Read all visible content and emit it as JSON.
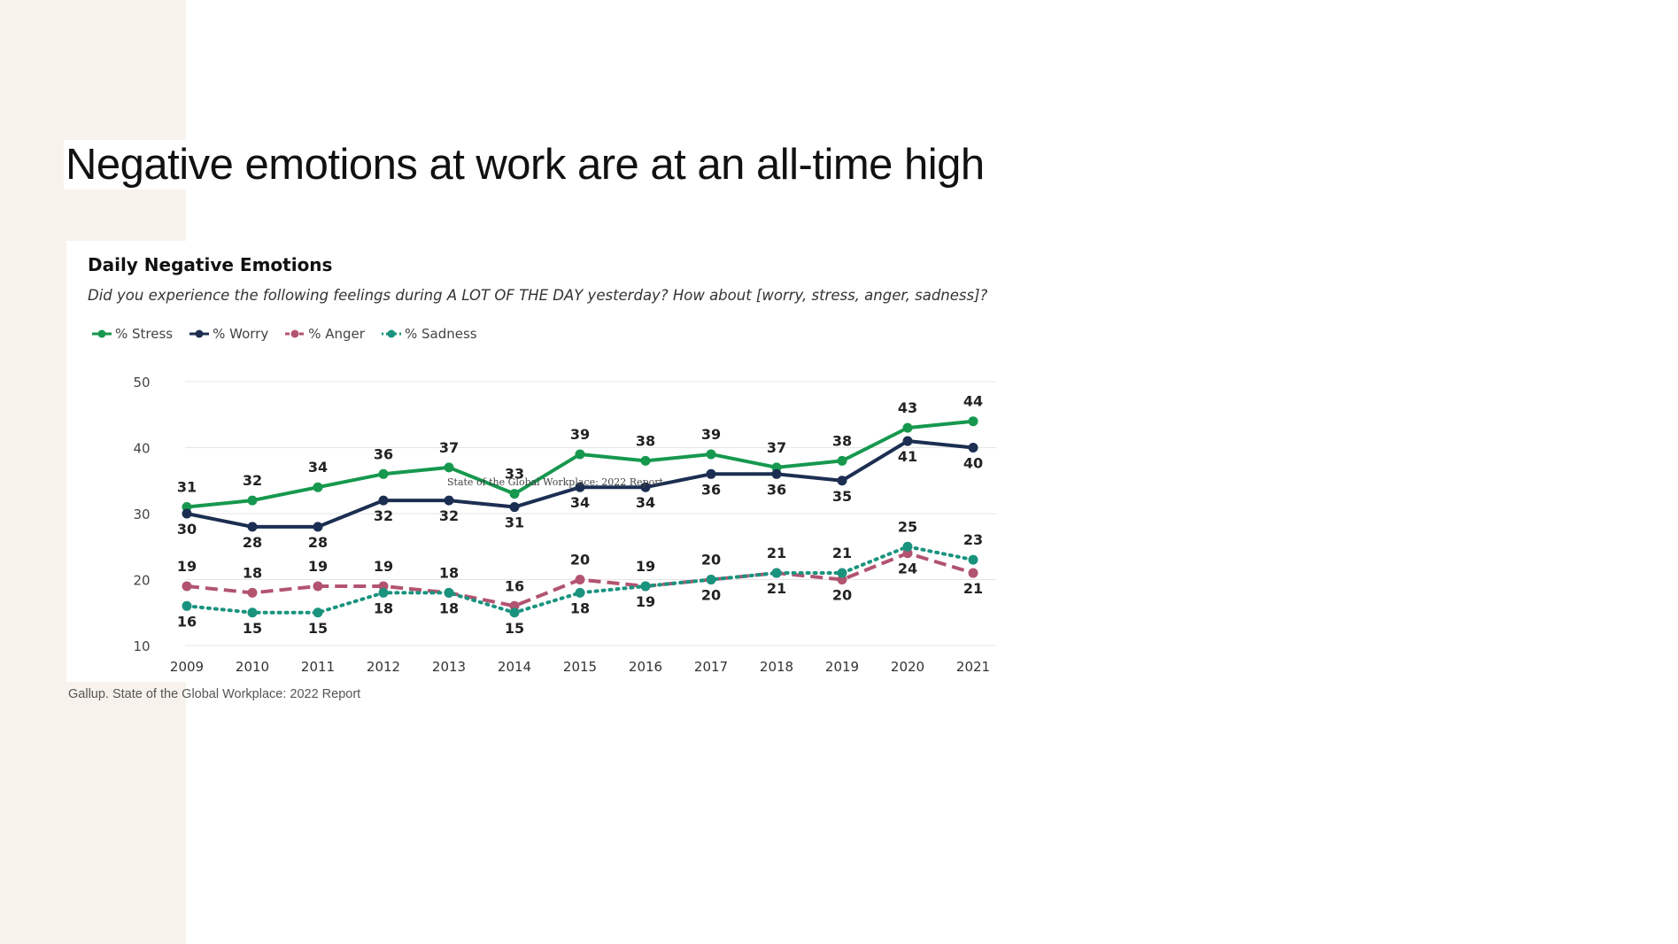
{
  "slide": {
    "title": "Negative emotions at work are at an all-time high",
    "source_note": "Gallup. State of the Global Workplace: 2022 Report",
    "watermark": "State of the Global Workplace: 2022 Report"
  },
  "colors": {
    "stress": "#16984e",
    "worry": "#1c2e52",
    "anger": "#b25470",
    "sadness": "#19937e",
    "side_panel": "#f7f3ec",
    "grid": "#e5e5e5"
  },
  "chart_data": {
    "type": "line",
    "title": "Daily Negative Emotions",
    "subtitle": "Did you experience the following feelings during A LOT OF THE DAY yesterday? How about [worry, stress, anger, sadness]?",
    "x": [
      "2009",
      "2010",
      "2011",
      "2012",
      "2013",
      "2014",
      "2015",
      "2016",
      "2017",
      "2018",
      "2019",
      "2020",
      "2021"
    ],
    "ylim": [
      10,
      50
    ],
    "yticks": [
      10,
      20,
      30,
      40,
      50
    ],
    "grid": true,
    "legend_position": "top-left",
    "series": [
      {
        "name": "% Stress",
        "key": "stress",
        "style": "solid",
        "values": [
          31,
          32,
          34,
          36,
          37,
          33,
          39,
          38,
          39,
          37,
          38,
          43,
          44
        ]
      },
      {
        "name": "% Worry",
        "key": "worry",
        "style": "solid",
        "values": [
          30,
          28,
          28,
          32,
          32,
          31,
          34,
          34,
          36,
          36,
          35,
          41,
          40
        ]
      },
      {
        "name": "% Anger",
        "key": "anger",
        "style": "dashed",
        "values": [
          19,
          18,
          19,
          19,
          18,
          16,
          20,
          19,
          20,
          21,
          20,
          24,
          21
        ]
      },
      {
        "name": "% Sadness",
        "key": "sadness",
        "style": "dotted",
        "values": [
          16,
          15,
          15,
          18,
          18,
          15,
          18,
          19,
          20,
          21,
          21,
          25,
          23
        ]
      }
    ]
  }
}
